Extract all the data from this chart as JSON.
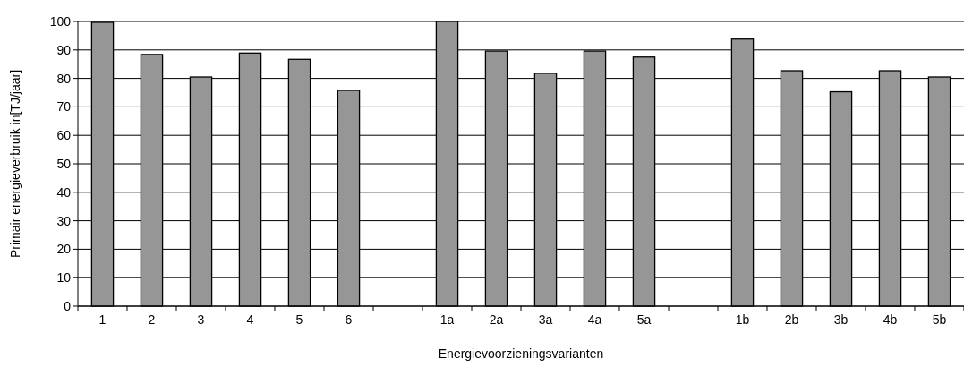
{
  "chart_data": {
    "type": "bar",
    "xlabel": "Energievoorzieningsvarianten",
    "ylabel": "Primair energieverbruik in[TJ/jaar]",
    "categories": [
      "1",
      "2",
      "3",
      "4",
      "5",
      "6",
      null,
      "1a",
      "2a",
      "3a",
      "4a",
      "5a",
      null,
      "1b",
      "2b",
      "3b",
      "4b",
      "5b"
    ],
    "values": [
      99.7,
      88.4,
      80.5,
      88.9,
      86.7,
      75.8,
      null,
      100,
      89.6,
      81.8,
      89.6,
      87.5,
      null,
      93.8,
      82.7,
      75.3,
      82.7,
      80.5
    ],
    "color": "#969696",
    "ylim": [
      0,
      100
    ],
    "yticks": [
      0,
      10,
      20,
      30,
      40,
      50,
      60,
      70,
      80,
      90,
      100
    ],
    "grid": "y"
  }
}
